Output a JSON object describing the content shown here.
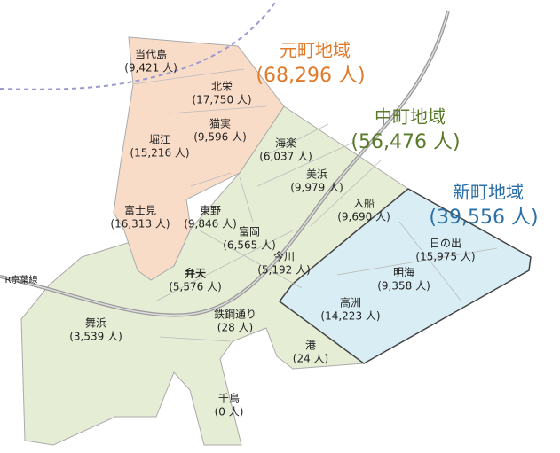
{
  "rail_label": "R京葉線",
  "regions": [
    {
      "name": "元町地域",
      "population": "(68,296 人)"
    },
    {
      "name": "中町地域",
      "population": "(56,476 人)"
    },
    {
      "name": "新町地域",
      "population": "(39,556 人)"
    }
  ],
  "districts": [
    {
      "name": "当代島",
      "population": "(9,421 人)"
    },
    {
      "name": "北栄",
      "population": "(17,750 人)"
    },
    {
      "name": "猫実",
      "population": "(9,596 人)"
    },
    {
      "name": "堀江",
      "population": "(15,216 人)"
    },
    {
      "name": "海楽",
      "population": "(6,037 人)"
    },
    {
      "name": "美浜",
      "population": "(9,979 人)"
    },
    {
      "name": "入船",
      "population": "(9,690 人)"
    },
    {
      "name": "富士見",
      "population": "(16,313 人)"
    },
    {
      "name": "東野",
      "population": "(9,846 人)"
    },
    {
      "name": "富岡",
      "population": "(6,565 人)"
    },
    {
      "name": "今川",
      "population": "(5,192 人)"
    },
    {
      "name": "日の出",
      "population": "(15,975 人)"
    },
    {
      "name": "明海",
      "population": "(9,358 人)"
    },
    {
      "name": "弁天",
      "population": "(5,576 人)"
    },
    {
      "name": "高洲",
      "population": "(14,223 人)"
    },
    {
      "name": "鉄鋼通り",
      "population": "(28 人)"
    },
    {
      "name": "舞浜",
      "population": "(3,539 人)"
    },
    {
      "name": "港",
      "population": "(24 人)"
    },
    {
      "name": "千鳥",
      "population": "(0 人)"
    }
  ]
}
